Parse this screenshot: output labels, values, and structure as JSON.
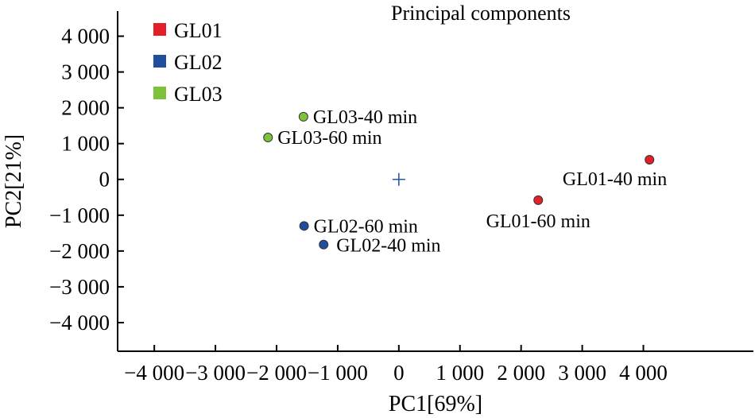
{
  "chart_data": {
    "type": "scatter",
    "title": "Principal components",
    "xlabel": "PC1[69%]",
    "ylabel": "PC2[21%]",
    "xlim": [
      -4600,
      5800
    ],
    "ylim": [
      -4800,
      4700
    ],
    "x_ticks": [
      -4000,
      -3000,
      -2000,
      -1000,
      0,
      1000,
      2000,
      3000,
      4000
    ],
    "y_ticks": [
      4000,
      3000,
      2000,
      1000,
      0,
      -1000,
      -2000,
      -3000,
      -4000
    ],
    "x_tick_labels": [
      "−4 000",
      "−3 000",
      "−2 000",
      "−1 000",
      "0",
      "1 000",
      "2 000",
      "3 000",
      "4 000"
    ],
    "y_tick_labels": [
      "4 000",
      "3 000",
      "2 000",
      "1 000",
      "0",
      "−1 000",
      "−2 000",
      "−3 000",
      "−4 000"
    ],
    "legend_position": "top-left",
    "origin_marker": "+",
    "series": [
      {
        "name": "GL01",
        "color": "#e3202a",
        "points": [
          {
            "label": "GL01-40 min",
            "x": 4100,
            "y": 550
          },
          {
            "label": "GL01-60 min",
            "x": 2280,
            "y": -580
          }
        ]
      },
      {
        "name": "GL02",
        "color": "#1f4e9c",
        "points": [
          {
            "label": "GL02-60 min",
            "x": -1550,
            "y": -1300
          },
          {
            "label": "GL02-40 min",
            "x": -1230,
            "y": -1820
          }
        ]
      },
      {
        "name": "GL03",
        "color": "#7cc23a",
        "points": [
          {
            "label": "GL03-40 min",
            "x": -1560,
            "y": 1750
          },
          {
            "label": "GL03-60 min",
            "x": -2140,
            "y": 1170
          }
        ]
      }
    ]
  }
}
